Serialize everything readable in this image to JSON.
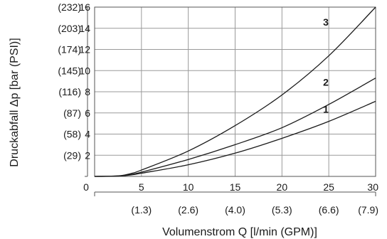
{
  "chart_data": {
    "type": "line",
    "xlabel": "Volumenstrom Q [l/min (GPM)]",
    "ylabel": "Druckabfall Δp [bar (PSI)]",
    "xlim": [
      0,
      30
    ],
    "ylim": [
      0,
      16
    ],
    "grid": true,
    "x_ticks": [
      {
        "value": 0,
        "label": "0"
      },
      {
        "value": 5,
        "label": "5"
      },
      {
        "value": 10,
        "label": "10"
      },
      {
        "value": 15,
        "label": "15"
      },
      {
        "value": 20,
        "label": "20"
      },
      {
        "value": 25,
        "label": "25"
      },
      {
        "value": 30,
        "label": "30"
      }
    ],
    "x_secondary_ticks": [
      {
        "value": 5,
        "label": "(1.3)"
      },
      {
        "value": 10,
        "label": "(2.6)"
      },
      {
        "value": 15,
        "label": "(4.0)"
      },
      {
        "value": 20,
        "label": "(5.3)"
      },
      {
        "value": 25,
        "label": "(6.6)"
      },
      {
        "value": 30,
        "label": "(7.9)"
      }
    ],
    "y_ticks": [
      {
        "value": 2,
        "label": "2"
      },
      {
        "value": 4,
        "label": "4"
      },
      {
        "value": 6,
        "label": "6"
      },
      {
        "value": 8,
        "label": "8"
      },
      {
        "value": 10,
        "label": "10"
      },
      {
        "value": 12,
        "label": "12"
      },
      {
        "value": 14,
        "label": "14"
      },
      {
        "value": 16,
        "label": "16"
      }
    ],
    "y_secondary_ticks": [
      {
        "value": 2,
        "label": "(29)"
      },
      {
        "value": 4,
        "label": "(58)"
      },
      {
        "value": 6,
        "label": "(87)"
      },
      {
        "value": 8,
        "label": "(116)"
      },
      {
        "value": 10,
        "label": "(145)"
      },
      {
        "value": 12,
        "label": "(174)"
      },
      {
        "value": 14,
        "label": "(203)"
      },
      {
        "value": 16,
        "label": "(232)"
      }
    ],
    "series": [
      {
        "name": "1",
        "x": [
          0,
          2,
          3,
          4,
          5,
          10,
          15,
          20,
          25,
          30
        ],
        "y": [
          0,
          0.02,
          0.06,
          0.15,
          0.3,
          1.1,
          2.2,
          3.6,
          5.2,
          7.1
        ]
      },
      {
        "name": "2",
        "x": [
          0,
          2,
          3,
          4,
          5,
          10,
          15,
          20,
          25,
          30
        ],
        "y": [
          0,
          0.02,
          0.07,
          0.2,
          0.4,
          1.6,
          3.0,
          4.6,
          6.8,
          9.3
        ]
      },
      {
        "name": "3",
        "x": [
          0,
          2,
          3,
          4,
          5,
          10,
          15,
          20,
          25,
          30
        ],
        "y": [
          0,
          0.03,
          0.1,
          0.3,
          0.6,
          2.4,
          4.8,
          7.7,
          11.4,
          16.0
        ]
      }
    ]
  }
}
